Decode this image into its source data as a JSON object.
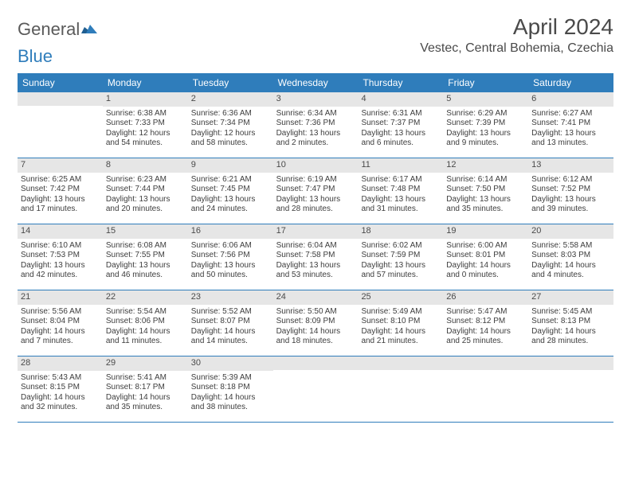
{
  "logo": {
    "text1": "General",
    "text2": "Blue"
  },
  "title": "April 2024",
  "location": "Vestec, Central Bohemia, Czechia",
  "colors": {
    "accent": "#2f7dbb",
    "daynum_bg": "#e6e6e6",
    "text": "#4a4a4a",
    "cell_text": "#3d3d3d"
  },
  "daynames": [
    "Sunday",
    "Monday",
    "Tuesday",
    "Wednesday",
    "Thursday",
    "Friday",
    "Saturday"
  ],
  "weeks": [
    [
      {
        "n": "",
        "lines": []
      },
      {
        "n": "1",
        "lines": [
          "Sunrise: 6:38 AM",
          "Sunset: 7:33 PM",
          "Daylight: 12 hours",
          "and 54 minutes."
        ]
      },
      {
        "n": "2",
        "lines": [
          "Sunrise: 6:36 AM",
          "Sunset: 7:34 PM",
          "Daylight: 12 hours",
          "and 58 minutes."
        ]
      },
      {
        "n": "3",
        "lines": [
          "Sunrise: 6:34 AM",
          "Sunset: 7:36 PM",
          "Daylight: 13 hours",
          "and 2 minutes."
        ]
      },
      {
        "n": "4",
        "lines": [
          "Sunrise: 6:31 AM",
          "Sunset: 7:37 PM",
          "Daylight: 13 hours",
          "and 6 minutes."
        ]
      },
      {
        "n": "5",
        "lines": [
          "Sunrise: 6:29 AM",
          "Sunset: 7:39 PM",
          "Daylight: 13 hours",
          "and 9 minutes."
        ]
      },
      {
        "n": "6",
        "lines": [
          "Sunrise: 6:27 AM",
          "Sunset: 7:41 PM",
          "Daylight: 13 hours",
          "and 13 minutes."
        ]
      }
    ],
    [
      {
        "n": "7",
        "lines": [
          "Sunrise: 6:25 AM",
          "Sunset: 7:42 PM",
          "Daylight: 13 hours",
          "and 17 minutes."
        ]
      },
      {
        "n": "8",
        "lines": [
          "Sunrise: 6:23 AM",
          "Sunset: 7:44 PM",
          "Daylight: 13 hours",
          "and 20 minutes."
        ]
      },
      {
        "n": "9",
        "lines": [
          "Sunrise: 6:21 AM",
          "Sunset: 7:45 PM",
          "Daylight: 13 hours",
          "and 24 minutes."
        ]
      },
      {
        "n": "10",
        "lines": [
          "Sunrise: 6:19 AM",
          "Sunset: 7:47 PM",
          "Daylight: 13 hours",
          "and 28 minutes."
        ]
      },
      {
        "n": "11",
        "lines": [
          "Sunrise: 6:17 AM",
          "Sunset: 7:48 PM",
          "Daylight: 13 hours",
          "and 31 minutes."
        ]
      },
      {
        "n": "12",
        "lines": [
          "Sunrise: 6:14 AM",
          "Sunset: 7:50 PM",
          "Daylight: 13 hours",
          "and 35 minutes."
        ]
      },
      {
        "n": "13",
        "lines": [
          "Sunrise: 6:12 AM",
          "Sunset: 7:52 PM",
          "Daylight: 13 hours",
          "and 39 minutes."
        ]
      }
    ],
    [
      {
        "n": "14",
        "lines": [
          "Sunrise: 6:10 AM",
          "Sunset: 7:53 PM",
          "Daylight: 13 hours",
          "and 42 minutes."
        ]
      },
      {
        "n": "15",
        "lines": [
          "Sunrise: 6:08 AM",
          "Sunset: 7:55 PM",
          "Daylight: 13 hours",
          "and 46 minutes."
        ]
      },
      {
        "n": "16",
        "lines": [
          "Sunrise: 6:06 AM",
          "Sunset: 7:56 PM",
          "Daylight: 13 hours",
          "and 50 minutes."
        ]
      },
      {
        "n": "17",
        "lines": [
          "Sunrise: 6:04 AM",
          "Sunset: 7:58 PM",
          "Daylight: 13 hours",
          "and 53 minutes."
        ]
      },
      {
        "n": "18",
        "lines": [
          "Sunrise: 6:02 AM",
          "Sunset: 7:59 PM",
          "Daylight: 13 hours",
          "and 57 minutes."
        ]
      },
      {
        "n": "19",
        "lines": [
          "Sunrise: 6:00 AM",
          "Sunset: 8:01 PM",
          "Daylight: 14 hours",
          "and 0 minutes."
        ]
      },
      {
        "n": "20",
        "lines": [
          "Sunrise: 5:58 AM",
          "Sunset: 8:03 PM",
          "Daylight: 14 hours",
          "and 4 minutes."
        ]
      }
    ],
    [
      {
        "n": "21",
        "lines": [
          "Sunrise: 5:56 AM",
          "Sunset: 8:04 PM",
          "Daylight: 14 hours",
          "and 7 minutes."
        ]
      },
      {
        "n": "22",
        "lines": [
          "Sunrise: 5:54 AM",
          "Sunset: 8:06 PM",
          "Daylight: 14 hours",
          "and 11 minutes."
        ]
      },
      {
        "n": "23",
        "lines": [
          "Sunrise: 5:52 AM",
          "Sunset: 8:07 PM",
          "Daylight: 14 hours",
          "and 14 minutes."
        ]
      },
      {
        "n": "24",
        "lines": [
          "Sunrise: 5:50 AM",
          "Sunset: 8:09 PM",
          "Daylight: 14 hours",
          "and 18 minutes."
        ]
      },
      {
        "n": "25",
        "lines": [
          "Sunrise: 5:49 AM",
          "Sunset: 8:10 PM",
          "Daylight: 14 hours",
          "and 21 minutes."
        ]
      },
      {
        "n": "26",
        "lines": [
          "Sunrise: 5:47 AM",
          "Sunset: 8:12 PM",
          "Daylight: 14 hours",
          "and 25 minutes."
        ]
      },
      {
        "n": "27",
        "lines": [
          "Sunrise: 5:45 AM",
          "Sunset: 8:13 PM",
          "Daylight: 14 hours",
          "and 28 minutes."
        ]
      }
    ],
    [
      {
        "n": "28",
        "lines": [
          "Sunrise: 5:43 AM",
          "Sunset: 8:15 PM",
          "Daylight: 14 hours",
          "and 32 minutes."
        ]
      },
      {
        "n": "29",
        "lines": [
          "Sunrise: 5:41 AM",
          "Sunset: 8:17 PM",
          "Daylight: 14 hours",
          "and 35 minutes."
        ]
      },
      {
        "n": "30",
        "lines": [
          "Sunrise: 5:39 AM",
          "Sunset: 8:18 PM",
          "Daylight: 14 hours",
          "and 38 minutes."
        ]
      },
      {
        "n": "",
        "lines": []
      },
      {
        "n": "",
        "lines": []
      },
      {
        "n": "",
        "lines": []
      },
      {
        "n": "",
        "lines": []
      }
    ]
  ]
}
